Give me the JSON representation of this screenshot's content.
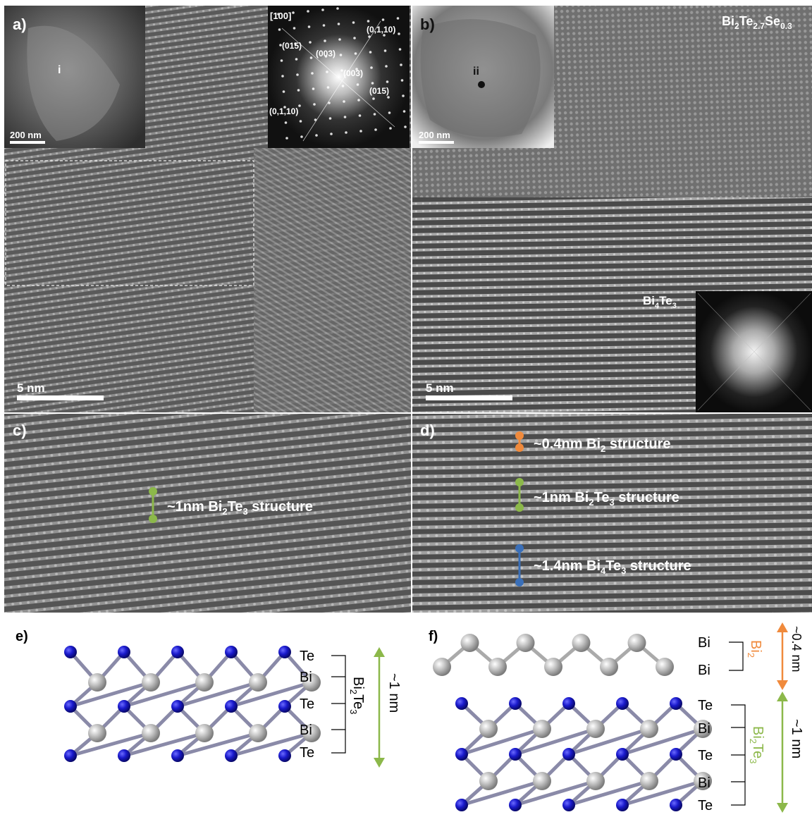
{
  "panels": {
    "a": {
      "label": "a)",
      "inset_label": "i",
      "inset_scale": "200 nm",
      "scale": "5 nm",
      "fft": {
        "zone_axis": "[100]",
        "spots": [
          "(015)",
          "(003)",
          "(003)",
          "(015)",
          "(0,1,10)",
          "(0,1,10)"
        ]
      }
    },
    "b": {
      "label": "b)",
      "inset_label": "ii",
      "inset_scale": "200 nm",
      "scale": "5 nm",
      "phase_label_top": {
        "base": "Bi",
        "s1": "2",
        "mid": "Te",
        "s2": "2.7",
        "mid2": "Se",
        "s3": "0.3"
      },
      "phase_label_inset": {
        "base": "Bi",
        "s1": "4",
        "mid": "Te",
        "s2": "3"
      }
    },
    "c": {
      "label": "c)",
      "annotation": {
        "pre": "~1nm Bi",
        "s1": "2",
        "mid": "Te",
        "s2": "3",
        "post": " structure"
      }
    },
    "d": {
      "label": "d)",
      "annotations": [
        {
          "pre": "~0.4nm Bi",
          "s1": "2",
          "mid": "",
          "s2": "",
          "post": " structure"
        },
        {
          "pre": "~1nm Bi",
          "s1": "2",
          "mid": "Te",
          "s2": "3",
          "post": " structure"
        },
        {
          "pre": "~1.4nm Bi",
          "s1": "4",
          "mid": "Te",
          "s2": "3",
          "post": " structure"
        }
      ]
    },
    "e": {
      "label": "e)",
      "layers": [
        "Te",
        "Bi",
        "Te",
        "Bi",
        "Te"
      ],
      "bracket_label": {
        "base": "Bi",
        "s1": "2",
        "mid": "Te",
        "s2": "3"
      },
      "thickness": "~1 nm"
    },
    "f": {
      "label": "f)",
      "top_layers": [
        "Bi",
        "Bi"
      ],
      "top_bracket_label": {
        "base": "Bi",
        "s1": "2"
      },
      "top_thickness": "~0.4 nm",
      "bottom_layers": [
        "Te",
        "Bi",
        "Te",
        "Bi",
        "Te"
      ],
      "bottom_bracket_label": {
        "base": "Bi",
        "s1": "2",
        "mid": "Te",
        "s2": "3"
      },
      "bottom_thickness": "~1 nm"
    }
  },
  "colors": {
    "te_atom": "#1a1acc",
    "bi_atom": "#b8b8b8",
    "orange": "#f08a3c",
    "green": "#8cb84a",
    "blue": "#3a6fb8"
  }
}
